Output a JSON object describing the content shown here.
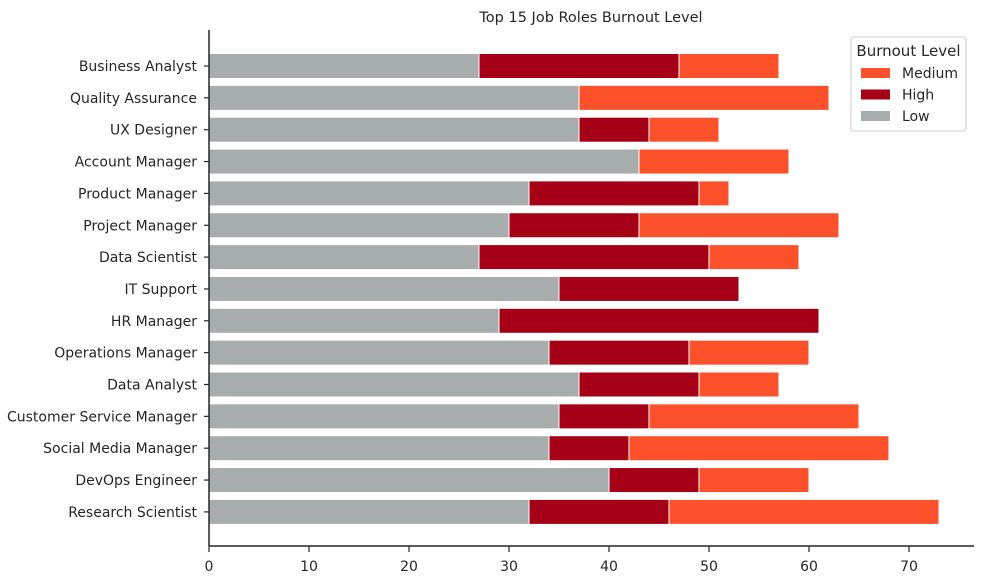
{
  "chart_data": {
    "type": "bar",
    "orientation": "horizontal",
    "stacked": true,
    "title": "Top 15 Job Roles Burnout Level",
    "xlabel": "",
    "ylabel": "",
    "xlim": [
      0,
      76.5
    ],
    "xticks": [
      "0",
      "10",
      "20",
      "30",
      "40",
      "50",
      "60",
      "70"
    ],
    "categories": [
      "Business Analyst",
      "Quality Assurance",
      "UX Designer",
      "Account Manager",
      "Product Manager",
      "Project Manager",
      "Data Scientist",
      "IT Support",
      "HR Manager",
      "Operations Manager",
      "Data Analyst",
      "Customer Service Manager",
      "Social Media Manager",
      "DevOps Engineer",
      "Research Scientist"
    ],
    "series": [
      {
        "name": "Low",
        "color": "#a6adac",
        "values": [
          27,
          37,
          37,
          43,
          32,
          30,
          27,
          35,
          29,
          34,
          37,
          35,
          34,
          40,
          32
        ]
      },
      {
        "name": "High",
        "color": "#a50015",
        "values": [
          20,
          0,
          7,
          0,
          17,
          13,
          23,
          18,
          32,
          14,
          12,
          9,
          8,
          9,
          14
        ]
      },
      {
        "name": "Medium",
        "color": "#fc512b",
        "values": [
          10,
          25,
          7,
          15,
          3,
          20,
          9,
          0,
          0,
          12,
          8,
          21,
          26,
          11,
          27
        ]
      }
    ],
    "legend": {
      "title": "Burnout Level",
      "position": "top-right",
      "entries": [
        "Medium",
        "High",
        "Low"
      ]
    },
    "grid": false
  }
}
